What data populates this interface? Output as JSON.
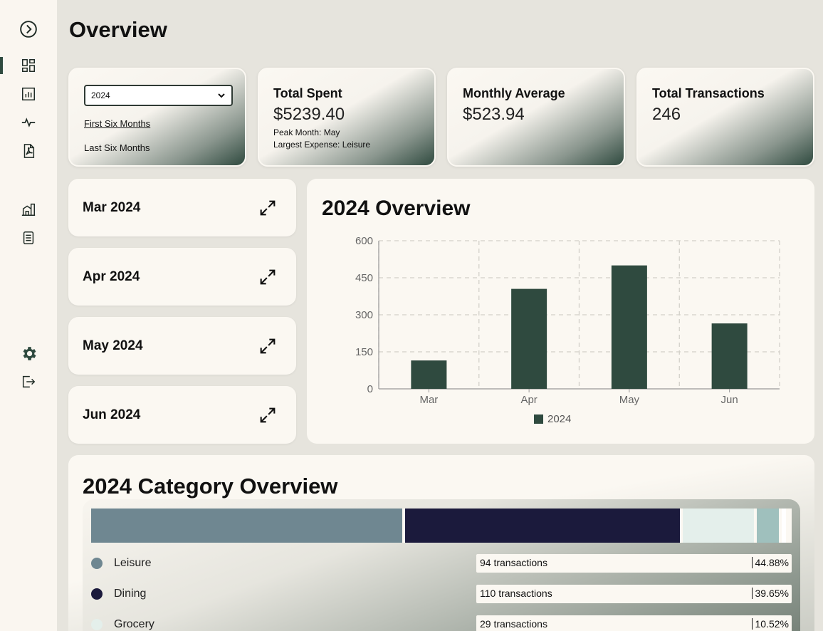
{
  "page": {
    "title": "Overview"
  },
  "sidebar": {
    "icons": [
      "chevron-right-circle-icon",
      "dashboard-icon",
      "bar-report-icon",
      "activity-icon",
      "pdf-icon",
      "building-icon",
      "notes-icon",
      "settings-icon",
      "logout-icon"
    ]
  },
  "filter": {
    "year_value": "2024",
    "first_half_label": "First Six Months",
    "second_half_label": "Last Six Months"
  },
  "stats": {
    "total_spent": {
      "title": "Total Spent",
      "value": "$5239.40",
      "peak": "Peak Month: May",
      "largest": "Largest Expense: Leisure"
    },
    "monthly_average": {
      "title": "Monthly Average",
      "value": "$523.94"
    },
    "total_transactions": {
      "title": "Total Transactions",
      "value": "246"
    }
  },
  "months": [
    {
      "label": "Mar 2024"
    },
    {
      "label": "Apr 2024"
    },
    {
      "label": "May 2024"
    },
    {
      "label": "Jun 2024"
    }
  ],
  "chart_data": {
    "type": "bar",
    "title": "2024 Overview",
    "categories": [
      "Mar",
      "Apr",
      "May",
      "Jun"
    ],
    "series": [
      {
        "name": "2024",
        "values": [
          115,
          405,
          500,
          265
        ],
        "color": "#2f4a3f"
      }
    ],
    "ylim": [
      0,
      600
    ],
    "yticks": [
      0,
      150,
      300,
      450,
      600
    ],
    "grid": true,
    "legend": "bottom"
  },
  "categories": {
    "title": "2024 Category Overview",
    "items": [
      {
        "name": "Leisure",
        "transactions": "94 transactions",
        "percent": "44.88%",
        "share": 44.88,
        "color": "#6f8791"
      },
      {
        "name": "Dining",
        "transactions": "110 transactions",
        "percent": "39.65%",
        "share": 39.65,
        "color": "#1b1a3c"
      },
      {
        "name": "Grocery",
        "transactions": "29 transactions",
        "percent": "10.52%",
        "share": 10.52,
        "color": "#e4efeb"
      },
      {
        "name": "",
        "transactions": "",
        "percent": "",
        "share": 3.6,
        "color": "#9fc0bd"
      },
      {
        "name": "",
        "transactions": "",
        "percent": "",
        "share": 1.0,
        "color": "#ffffff"
      },
      {
        "name": "",
        "transactions": "",
        "percent": "",
        "share": 0.35,
        "color": "#ffffff"
      }
    ]
  }
}
